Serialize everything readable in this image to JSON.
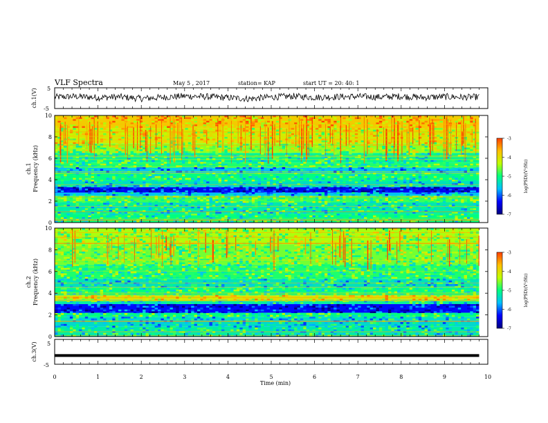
{
  "header": {
    "title": "VLF Spectra",
    "date": "May 5  , 2017",
    "station": "station= KAP",
    "start": "start  UT  =   20: 40: 1"
  },
  "chart_data": [
    {
      "type": "line",
      "panel": "ch1-waveform",
      "ylabel": "ch.1(V)",
      "ylim": [
        -5,
        5
      ],
      "xlim": [
        0,
        10
      ],
      "x": [
        0,
        0.5,
        1,
        1.5,
        2,
        2.5,
        3,
        3.5,
        4,
        4.5,
        5,
        5.5,
        6,
        6.5,
        7,
        7.5,
        8,
        8.5,
        9,
        9.5,
        9.8
      ],
      "y": [
        0.5,
        0.8,
        0.3,
        0.6,
        -0.2,
        0.4,
        1.0,
        0.7,
        0.2,
        -0.3,
        0.5,
        0.9,
        0.4,
        0.6,
        0.8,
        0.5,
        0.9,
        0.3,
        0.7,
        0.4,
        0.6
      ],
      "yticks": [
        "5",
        "-5"
      ]
    },
    {
      "type": "heatmap",
      "panel": "ch1-spectrogram",
      "ylabel": "ch.1\nFrequency (kHz)",
      "xlim": [
        0,
        10
      ],
      "ylim": [
        0,
        10
      ],
      "x_data_end": 9.8,
      "yticks": [
        "0",
        "2",
        "4",
        "6",
        "8",
        "10"
      ],
      "colorbar": {
        "label": "log(PSD)(V²/Hz)",
        "range": [
          -7,
          -3
        ],
        "ticks": [
          "-3",
          "-4",
          "-5",
          "-6",
          "-7"
        ],
        "colors": [
          "#00007f",
          "#0000ff",
          "#00bfff",
          "#00ff7f",
          "#bfff00",
          "#ffbf00",
          "#ff3f00",
          "#ffffff"
        ]
      }
    },
    {
      "type": "heatmap",
      "panel": "ch2-spectrogram",
      "ylabel": "ch.2\nFrequency (kHz)",
      "xlim": [
        0,
        10
      ],
      "ylim": [
        0,
        10
      ],
      "x_data_end": 9.8,
      "yticks": [
        "0",
        "2",
        "4",
        "6",
        "8",
        "10"
      ],
      "colorbar": {
        "label": "log(PSD)(V²/Hz)",
        "range": [
          -7,
          -3
        ],
        "ticks": [
          "-3",
          "-4",
          "-5",
          "-6",
          "-7"
        ],
        "colors": [
          "#00007f",
          "#0000ff",
          "#00bfff",
          "#00ff7f",
          "#bfff00",
          "#ffbf00",
          "#ff3f00",
          "#ffffff"
        ]
      }
    },
    {
      "type": "line",
      "panel": "ch3-waveform",
      "ylabel": "ch.3(V)",
      "ylim": [
        -5,
        5
      ],
      "xlim": [
        0,
        10
      ],
      "x": [
        0,
        9.8
      ],
      "y": [
        -1.5,
        -1.5
      ],
      "yticks": [
        "5",
        "-5"
      ]
    }
  ],
  "xaxis": {
    "label": "Time  (min)",
    "ticks": [
      "0",
      "1",
      "2",
      "3",
      "4",
      "5",
      "6",
      "7",
      "8",
      "9",
      "10"
    ]
  },
  "spectrogram_frequency_bands": {
    "ch1": [
      {
        "from_khz": 0.0,
        "to_khz": 0.8,
        "level": -5.0
      },
      {
        "from_khz": 0.8,
        "to_khz": 1.9,
        "level": -5.2
      },
      {
        "from_khz": 1.9,
        "to_khz": 2.5,
        "level": -4.8
      },
      {
        "from_khz": 2.5,
        "to_khz": 2.8,
        "level": -5.6
      },
      {
        "from_khz": 2.8,
        "to_khz": 3.3,
        "level": -6.4
      },
      {
        "from_khz": 3.3,
        "to_khz": 3.9,
        "level": -5.3
      },
      {
        "from_khz": 3.9,
        "to_khz": 4.6,
        "level": -5.0
      },
      {
        "from_khz": 4.6,
        "to_khz": 5.1,
        "level": -5.6
      },
      {
        "from_khz": 5.1,
        "to_khz": 5.6,
        "level": -4.9
      },
      {
        "from_khz": 5.6,
        "to_khz": 6.5,
        "level": -5.1
      },
      {
        "from_khz": 6.5,
        "to_khz": 7.4,
        "level": -4.5
      },
      {
        "from_khz": 7.4,
        "to_khz": 8.8,
        "level": -4.1
      },
      {
        "from_khz": 8.8,
        "to_khz": 10.0,
        "level": -3.8
      }
    ],
    "ch2": [
      {
        "from_khz": 0.0,
        "to_khz": 0.9,
        "level": -5.2
      },
      {
        "from_khz": 0.9,
        "to_khz": 1.8,
        "level": -5.4
      },
      {
        "from_khz": 1.8,
        "to_khz": 2.2,
        "level": -5.0
      },
      {
        "from_khz": 2.2,
        "to_khz": 3.0,
        "level": -6.3
      },
      {
        "from_khz": 3.0,
        "to_khz": 3.4,
        "level": -5.2
      },
      {
        "from_khz": 3.4,
        "to_khz": 3.8,
        "level": -4.0
      },
      {
        "from_khz": 3.8,
        "to_khz": 4.5,
        "level": -5.0
      },
      {
        "from_khz": 4.5,
        "to_khz": 5.3,
        "level": -5.3
      },
      {
        "from_khz": 5.3,
        "to_khz": 6.6,
        "level": -4.9
      },
      {
        "from_khz": 6.6,
        "to_khz": 8.5,
        "level": -4.6
      },
      {
        "from_khz": 8.5,
        "to_khz": 10.0,
        "level": -4.4
      }
    ]
  }
}
